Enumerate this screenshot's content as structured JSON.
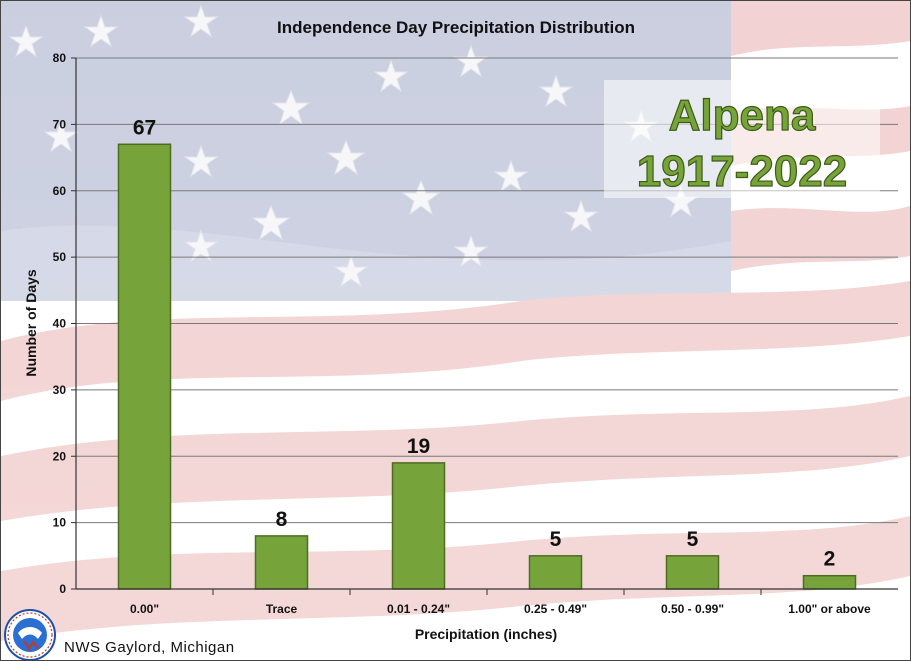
{
  "chart_data": {
    "type": "bar",
    "title": "Independence Day Precipitation Distribution",
    "xlabel": "Precipitation (inches)",
    "ylabel": "Number of Days",
    "categories": [
      "0.00\"",
      "Trace",
      "0.01 - 0.24\"",
      "0.25 - 0.49\"",
      "0.50 - 0.99\"",
      "1.00\" or above"
    ],
    "values": [
      67,
      8,
      19,
      5,
      5,
      2
    ],
    "ylim": [
      0,
      80
    ],
    "yticks": [
      0,
      10,
      20,
      30,
      40,
      50,
      60,
      70,
      80
    ],
    "grid": true,
    "data_labels": true,
    "bar_color": "#77a43a"
  },
  "annotation": {
    "line1": "Alpena",
    "line2": "1917-2022"
  },
  "credit": "NWS Gaylord, Michigan",
  "logo": {
    "icon": "nws-logo-icon",
    "text": "NATIONAL WEATHER SERVICE"
  },
  "background": {
    "icon": "american-flag-icon",
    "red": "#c0392b",
    "blue": "#3b4d8f"
  }
}
